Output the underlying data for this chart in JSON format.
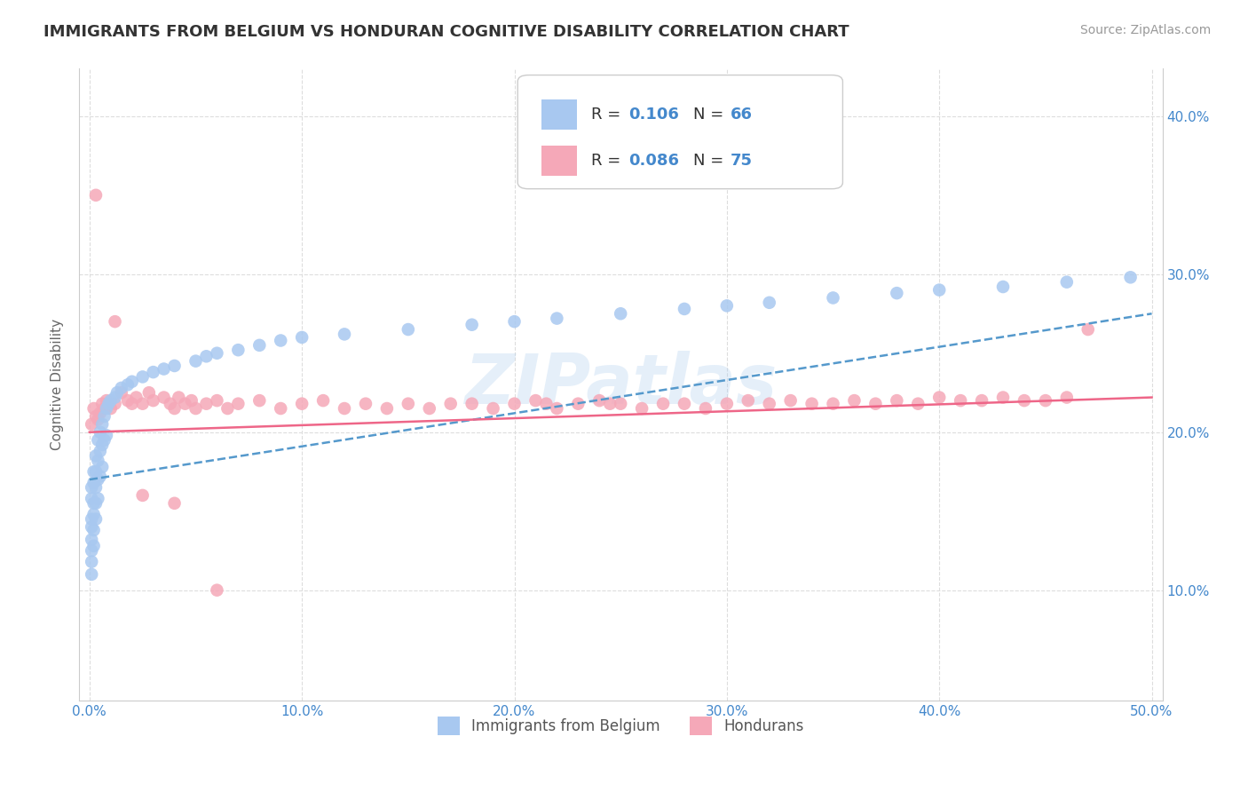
{
  "title": "IMMIGRANTS FROM BELGIUM VS HONDURAN COGNITIVE DISABILITY CORRELATION CHART",
  "source": "Source: ZipAtlas.com",
  "ylabel": "Cognitive Disability",
  "xlabel": "",
  "xlim": [
    -0.005,
    0.505
  ],
  "ylim": [
    0.03,
    0.43
  ],
  "xticks": [
    0.0,
    0.1,
    0.2,
    0.3,
    0.4,
    0.5
  ],
  "xticklabels": [
    "0.0%",
    "10.0%",
    "20.0%",
    "30.0%",
    "40.0%",
    "50.0%"
  ],
  "yticks": [
    0.1,
    0.2,
    0.3,
    0.4
  ],
  "yticklabels": [
    "10.0%",
    "20.0%",
    "30.0%",
    "40.0%"
  ],
  "grid_color": "#dddddd",
  "background_color": "#ffffff",
  "belgium_color": "#a8c8f0",
  "honduras_color": "#f5a8b8",
  "belgium_line_color": "#5599cc",
  "honduras_line_color": "#ee6688",
  "watermark": "ZIPatlas",
  "title_fontsize": 13,
  "legend_label_belgium": "Immigrants from Belgium",
  "legend_label_honduras": "Hondurans",
  "belgium_x": [
    0.001,
    0.001,
    0.001,
    0.001,
    0.001,
    0.001,
    0.001,
    0.001,
    0.002,
    0.002,
    0.002,
    0.002,
    0.002,
    0.002,
    0.003,
    0.003,
    0.003,
    0.003,
    0.003,
    0.004,
    0.004,
    0.004,
    0.004,
    0.005,
    0.005,
    0.005,
    0.006,
    0.006,
    0.006,
    0.007,
    0.007,
    0.008,
    0.008,
    0.009,
    0.01,
    0.012,
    0.013,
    0.015,
    0.018,
    0.02,
    0.025,
    0.03,
    0.035,
    0.04,
    0.05,
    0.055,
    0.06,
    0.07,
    0.08,
    0.09,
    0.1,
    0.12,
    0.15,
    0.18,
    0.2,
    0.22,
    0.25,
    0.28,
    0.3,
    0.32,
    0.35,
    0.38,
    0.4,
    0.43,
    0.46,
    0.49
  ],
  "belgium_y": [
    0.165,
    0.158,
    0.145,
    0.14,
    0.132,
    0.125,
    0.118,
    0.11,
    0.175,
    0.168,
    0.155,
    0.148,
    0.138,
    0.128,
    0.185,
    0.175,
    0.165,
    0.155,
    0.145,
    0.195,
    0.182,
    0.17,
    0.158,
    0.2,
    0.188,
    0.172,
    0.205,
    0.192,
    0.178,
    0.21,
    0.195,
    0.215,
    0.198,
    0.218,
    0.22,
    0.222,
    0.225,
    0.228,
    0.23,
    0.232,
    0.235,
    0.238,
    0.24,
    0.242,
    0.245,
    0.248,
    0.25,
    0.252,
    0.255,
    0.258,
    0.26,
    0.262,
    0.265,
    0.268,
    0.27,
    0.272,
    0.275,
    0.278,
    0.28,
    0.282,
    0.285,
    0.288,
    0.29,
    0.292,
    0.295,
    0.298
  ],
  "honduras_x": [
    0.001,
    0.002,
    0.003,
    0.004,
    0.005,
    0.006,
    0.007,
    0.008,
    0.01,
    0.012,
    0.015,
    0.018,
    0.02,
    0.022,
    0.025,
    0.028,
    0.03,
    0.035,
    0.038,
    0.04,
    0.042,
    0.045,
    0.048,
    0.05,
    0.055,
    0.06,
    0.065,
    0.07,
    0.08,
    0.09,
    0.1,
    0.11,
    0.12,
    0.13,
    0.14,
    0.15,
    0.16,
    0.17,
    0.18,
    0.19,
    0.2,
    0.21,
    0.215,
    0.22,
    0.23,
    0.24,
    0.245,
    0.25,
    0.26,
    0.27,
    0.28,
    0.29,
    0.3,
    0.31,
    0.32,
    0.33,
    0.34,
    0.35,
    0.36,
    0.37,
    0.38,
    0.39,
    0.4,
    0.41,
    0.42,
    0.43,
    0.44,
    0.45,
    0.46,
    0.47,
    0.003,
    0.012,
    0.025,
    0.04,
    0.06
  ],
  "honduras_y": [
    0.205,
    0.215,
    0.21,
    0.208,
    0.212,
    0.218,
    0.215,
    0.22,
    0.215,
    0.218,
    0.225,
    0.22,
    0.218,
    0.222,
    0.218,
    0.225,
    0.22,
    0.222,
    0.218,
    0.215,
    0.222,
    0.218,
    0.22,
    0.215,
    0.218,
    0.22,
    0.215,
    0.218,
    0.22,
    0.215,
    0.218,
    0.22,
    0.215,
    0.218,
    0.215,
    0.218,
    0.215,
    0.218,
    0.218,
    0.215,
    0.218,
    0.22,
    0.218,
    0.215,
    0.218,
    0.22,
    0.218,
    0.218,
    0.215,
    0.218,
    0.218,
    0.215,
    0.218,
    0.22,
    0.218,
    0.22,
    0.218,
    0.218,
    0.22,
    0.218,
    0.22,
    0.218,
    0.222,
    0.22,
    0.22,
    0.222,
    0.22,
    0.22,
    0.222,
    0.265,
    0.35,
    0.27,
    0.16,
    0.155,
    0.1
  ],
  "belgium_trend_x": [
    0.0,
    0.5
  ],
  "belgium_trend_y": [
    0.17,
    0.275
  ],
  "honduras_trend_x": [
    0.0,
    0.5
  ],
  "honduras_trend_y": [
    0.2,
    0.222
  ]
}
